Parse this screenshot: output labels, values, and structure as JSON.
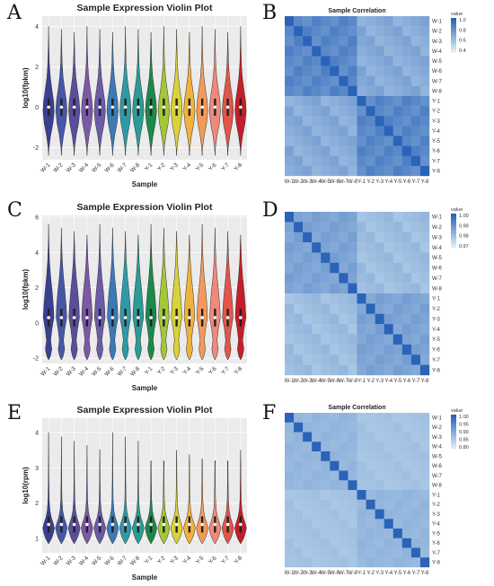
{
  "panel_letters": [
    "A",
    "B",
    "C",
    "D",
    "E",
    "F"
  ],
  "colors": {
    "W": [
      "#3b3f8f",
      "#4657a8",
      "#5a4e9c",
      "#7c58a6",
      "#6a5aa8",
      "#3c79b5",
      "#2f9aa6",
      "#2a9c95"
    ],
    "Y": [
      "#1a8a4a",
      "#a4c639",
      "#d9d23a",
      "#f0b23c",
      "#f39a5a",
      "#ef8a7a",
      "#e25548",
      "#c41e2a"
    ],
    "heat_blue": "#2a63b8",
    "heat_light": "#d9ecf5"
  },
  "chart_data": [
    {
      "type": "violin",
      "panel": "A",
      "title": "Sample Expression Violin Plot",
      "xlabel": "Sample",
      "ylabel": "log10(fpkm)",
      "categories": [
        "W-1",
        "W-2",
        "W-3",
        "W-4",
        "W-5",
        "W-6",
        "W-7",
        "W-8",
        "Y-1",
        "Y-2",
        "Y-3",
        "Y-4",
        "Y-5",
        "Y-6",
        "Y-7",
        "Y-8"
      ],
      "ylim": [
        -2.6,
        4.5
      ],
      "yticks": [
        -2,
        0,
        2,
        4
      ],
      "median": 0,
      "grid": true
    },
    {
      "type": "heatmap",
      "panel": "B",
      "title": "Sample Correlation",
      "labels": [
        "W-1",
        "W-2",
        "W-3",
        "W-4",
        "W-5",
        "W-6",
        "W-7",
        "W-8",
        "Y-1",
        "Y-2",
        "Y-3",
        "Y-4",
        "Y-5",
        "Y-6",
        "Y-7",
        "Y-8"
      ],
      "legend_title": "value",
      "legend_ticks": [
        "1.0",
        "0.8",
        "0.6",
        "0.4"
      ],
      "value_range": [
        0.3,
        1.0
      ],
      "diagonal": 1.0,
      "within_group": 0.85,
      "between_group": 0.58
    },
    {
      "type": "violin",
      "panel": "C",
      "title": "Sample Expression Violin Plot",
      "xlabel": "Sample",
      "ylabel": "log10(fpkm)",
      "categories": [
        "W-1",
        "W-2",
        "W-3",
        "W-4",
        "W-5",
        "W-6",
        "W-7",
        "W-8",
        "Y-1",
        "Y-2",
        "Y-3",
        "Y-4",
        "Y-5",
        "Y-6",
        "Y-7",
        "Y-8"
      ],
      "ylim": [
        -2.3,
        6.1
      ],
      "yticks": [
        -2,
        0,
        2,
        4,
        6
      ],
      "median": 0.3,
      "grid": true
    },
    {
      "type": "heatmap",
      "panel": "D",
      "title": "",
      "labels": [
        "W-1",
        "W-2",
        "W-3",
        "W-4",
        "W-5",
        "W-6",
        "W-7",
        "W-8",
        "Y-1",
        "Y-2",
        "Y-3",
        "Y-4",
        "Y-5",
        "Y-6",
        "Y-7",
        "Y-8"
      ],
      "legend_title": "value",
      "legend_ticks": [
        "1.00",
        "0.99",
        "0.98",
        "0.97"
      ],
      "value_range": [
        0.965,
        1.0
      ],
      "diagonal": 1.0,
      "within_group": 0.985,
      "between_group": 0.975
    },
    {
      "type": "violin",
      "panel": "E",
      "title": "Sample Expression Violin Plot",
      "xlabel": "Sample",
      "ylabel": "log10(rpm)",
      "categories": [
        "W-1",
        "W-2",
        "W-3",
        "W-4",
        "W-5",
        "W-6",
        "W-7",
        "W-8",
        "Y-1",
        "Y-2",
        "Y-3",
        "Y-4",
        "Y-5",
        "Y-6",
        "Y-7",
        "Y-8"
      ],
      "ylim": [
        0.6,
        4.4
      ],
      "yticks": [
        1,
        2,
        3,
        4
      ],
      "median": 1.4,
      "grid": true
    },
    {
      "type": "heatmap",
      "panel": "F",
      "title": "Sample Correlation",
      "labels": [
        "W-1",
        "W-2",
        "W-3",
        "W-4",
        "W-5",
        "W-6",
        "W-7",
        "W-8",
        "Y-1",
        "Y-2",
        "Y-3",
        "Y-4",
        "Y-5",
        "Y-6",
        "Y-7",
        "Y-8"
      ],
      "legend_title": "value",
      "legend_ticks": [
        "1.00",
        "0.95",
        "0.90",
        "0.85",
        "0.80"
      ],
      "value_range": [
        0.78,
        1.0
      ],
      "diagonal": 1.0,
      "within_group": 0.87,
      "between_group": 0.84
    }
  ]
}
